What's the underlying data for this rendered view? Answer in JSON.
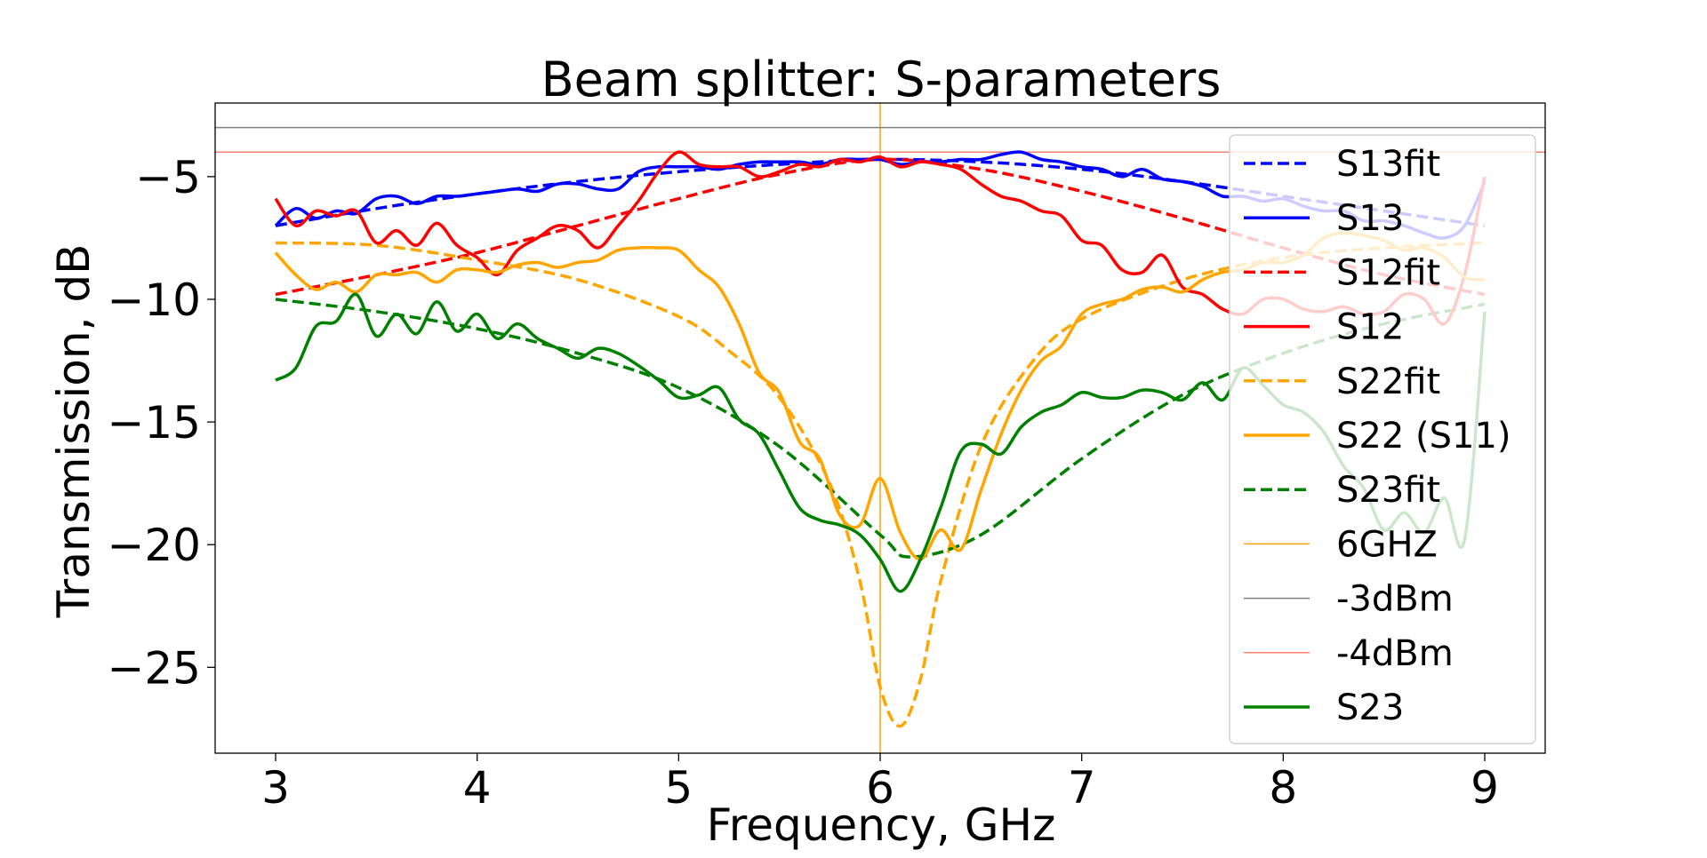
{
  "chart_data": {
    "type": "line",
    "title": "Beam splitter:  S-parameters",
    "xlabel": "Frequency, GHz",
    "ylabel": "Transmission, dB",
    "xlim": [
      2.7,
      9.3
    ],
    "ylim": [
      -28.5,
      -2
    ],
    "xticks": [
      3,
      4,
      5,
      6,
      7,
      8,
      9
    ],
    "xtick_labels": [
      "3",
      "4",
      "5",
      "6",
      "7",
      "8",
      "9"
    ],
    "yticks": [
      -5,
      -10,
      -15,
      -20,
      -25
    ],
    "ytick_labels": [
      "−5",
      "−10",
      "−15",
      "−20",
      "−25"
    ],
    "grid": false,
    "legend_position": "right",
    "series": [
      {
        "name": "S13fit",
        "color": "#0000ff",
        "style": "dashed",
        "x": [
          3,
          3.5,
          4,
          4.5,
          5,
          5.5,
          6,
          6.5,
          7,
          7.5,
          8,
          8.5,
          9
        ],
        "y": [
          -7.0,
          -6.3,
          -5.7,
          -5.2,
          -4.8,
          -4.5,
          -4.3,
          -4.4,
          -4.7,
          -5.2,
          -5.8,
          -6.4,
          -7.0
        ]
      },
      {
        "name": "S13",
        "color": "#0000ff",
        "style": "solid",
        "x": [
          3,
          3.1,
          3.2,
          3.3,
          3.4,
          3.5,
          3.6,
          3.7,
          3.8,
          3.9,
          4,
          4.1,
          4.2,
          4.3,
          4.4,
          4.5,
          4.6,
          4.7,
          4.8,
          4.9,
          5,
          5.1,
          5.2,
          5.3,
          5.4,
          5.5,
          5.6,
          5.7,
          5.8,
          5.9,
          6,
          6.1,
          6.2,
          6.3,
          6.4,
          6.5,
          6.6,
          6.7,
          6.8,
          6.9,
          7,
          7.1,
          7.2,
          7.3,
          7.4,
          7.5,
          7.6,
          7.7,
          7.8,
          7.9,
          8,
          8.1,
          8.2,
          8.3,
          8.4,
          8.5,
          8.6,
          8.7,
          8.8,
          8.9,
          9
        ],
        "y": [
          -7.0,
          -6.3,
          -6.7,
          -6.4,
          -6.5,
          -5.9,
          -5.8,
          -6.1,
          -5.8,
          -5.8,
          -5.7,
          -5.6,
          -5.5,
          -5.6,
          -5.3,
          -5.3,
          -5.5,
          -5.5,
          -4.8,
          -4.6,
          -4.6,
          -4.6,
          -4.7,
          -4.5,
          -4.4,
          -4.4,
          -4.4,
          -4.5,
          -4.3,
          -4.3,
          -4.3,
          -4.5,
          -4.4,
          -4.4,
          -4.3,
          -4.3,
          -4.1,
          -4.0,
          -4.3,
          -4.4,
          -4.6,
          -4.7,
          -5.0,
          -4.7,
          -5.1,
          -5.2,
          -5.4,
          -5.8,
          -5.8,
          -6.0,
          -5.9,
          -6.2,
          -6.4,
          -6.4,
          -6.8,
          -6.8,
          -7.0,
          -7.3,
          -7.5,
          -7.0,
          -5.2
        ]
      },
      {
        "name": "S12fit",
        "color": "#ff0000",
        "style": "dashed",
        "x": [
          3,
          3.5,
          4,
          4.5,
          5,
          5.5,
          6,
          6.5,
          7,
          7.5,
          8,
          8.5,
          9
        ],
        "y": [
          -9.8,
          -9.0,
          -8.1,
          -7.0,
          -5.9,
          -4.9,
          -4.3,
          -4.7,
          -5.6,
          -6.7,
          -7.9,
          -9.0,
          -9.8
        ]
      },
      {
        "name": "S12",
        "color": "#ff0000",
        "style": "solid",
        "x": [
          3,
          3.1,
          3.2,
          3.3,
          3.4,
          3.5,
          3.6,
          3.7,
          3.8,
          3.9,
          4,
          4.1,
          4.2,
          4.3,
          4.4,
          4.5,
          4.6,
          4.7,
          4.8,
          4.9,
          5,
          5.1,
          5.2,
          5.3,
          5.4,
          5.5,
          5.6,
          5.7,
          5.8,
          5.9,
          6,
          6.1,
          6.2,
          6.3,
          6.4,
          6.5,
          6.6,
          6.7,
          6.8,
          6.9,
          7,
          7.1,
          7.2,
          7.3,
          7.4,
          7.5,
          7.6,
          7.7,
          7.8,
          7.9,
          8,
          8.1,
          8.2,
          8.3,
          8.4,
          8.5,
          8.6,
          8.7,
          8.8,
          8.9,
          9
        ],
        "y": [
          -5.9,
          -7.0,
          -6.4,
          -6.6,
          -6.4,
          -7.7,
          -7.2,
          -7.8,
          -6.9,
          -7.8,
          -8.3,
          -9.0,
          -8.0,
          -7.5,
          -7.0,
          -7.2,
          -7.9,
          -7.0,
          -6.0,
          -4.8,
          -4.0,
          -4.5,
          -4.6,
          -4.6,
          -5.0,
          -4.8,
          -4.5,
          -4.6,
          -4.3,
          -4.4,
          -4.2,
          -4.6,
          -4.4,
          -4.5,
          -4.7,
          -5.3,
          -5.8,
          -6.0,
          -6.4,
          -6.6,
          -7.6,
          -7.8,
          -8.8,
          -8.9,
          -8.2,
          -9.5,
          -9.8,
          -10.4,
          -10.6,
          -10.0,
          -10.0,
          -10.4,
          -10.5,
          -10.3,
          -10.6,
          -10.5,
          -9.8,
          -10.0,
          -11.0,
          -9.0,
          -5.0
        ]
      },
      {
        "name": "S22fit",
        "color": "#ffa500",
        "style": "dashed",
        "x": [
          3,
          3.5,
          4,
          4.5,
          5,
          5.25,
          5.5,
          5.75,
          5.9,
          6.0,
          6.1,
          6.2,
          6.3,
          6.5,
          6.75,
          7,
          7.5,
          8,
          8.5,
          9
        ],
        "y": [
          -7.7,
          -7.8,
          -8.4,
          -9.2,
          -10.7,
          -12.1,
          -14.0,
          -17.5,
          -21.5,
          -25.8,
          -27.4,
          -25.5,
          -21.5,
          -16.0,
          -12.6,
          -10.8,
          -9.2,
          -8.3,
          -7.9,
          -7.7
        ]
      },
      {
        "name": "S22 (S11)",
        "color": "#ffa500",
        "style": "solid",
        "x": [
          3,
          3.1,
          3.2,
          3.3,
          3.4,
          3.5,
          3.6,
          3.7,
          3.8,
          3.9,
          4,
          4.1,
          4.2,
          4.3,
          4.4,
          4.5,
          4.6,
          4.7,
          4.8,
          4.9,
          5,
          5.1,
          5.2,
          5.3,
          5.4,
          5.5,
          5.6,
          5.7,
          5.8,
          5.9,
          6,
          6.1,
          6.2,
          6.3,
          6.4,
          6.5,
          6.6,
          6.7,
          6.8,
          6.9,
          7,
          7.1,
          7.2,
          7.3,
          7.4,
          7.5,
          7.6,
          7.7,
          7.8,
          7.9,
          8,
          8.1,
          8.2,
          8.3,
          8.4,
          8.5,
          8.6,
          8.7,
          8.8,
          8.9,
          9
        ],
        "y": [
          -8.1,
          -9.0,
          -9.6,
          -9.3,
          -9.7,
          -9.0,
          -9.0,
          -8.9,
          -9.3,
          -8.8,
          -8.8,
          -8.9,
          -8.6,
          -8.5,
          -8.7,
          -8.5,
          -8.4,
          -8.0,
          -7.9,
          -7.9,
          -8.0,
          -8.8,
          -9.5,
          -11.0,
          -13.0,
          -13.8,
          -15.8,
          -16.5,
          -18.8,
          -19.2,
          -17.3,
          -19.5,
          -20.6,
          -19.4,
          -20.2,
          -17.8,
          -15.5,
          -13.7,
          -12.5,
          -11.9,
          -10.6,
          -10.2,
          -10.0,
          -9.6,
          -9.5,
          -9.7,
          -9.2,
          -8.9,
          -8.8,
          -8.5,
          -8.5,
          -8.2,
          -7.5,
          -7.3,
          -7.4,
          -7.6,
          -8.0,
          -7.9,
          -8.3,
          -9.1,
          -9.2
        ]
      },
      {
        "name": "S23fit",
        "color": "#008000",
        "style": "dashed",
        "x": [
          3,
          3.5,
          4,
          4.5,
          5,
          5.5,
          6,
          6.15,
          6.5,
          7,
          7.5,
          8,
          8.5,
          9
        ],
        "y": [
          -10.0,
          -10.5,
          -11.2,
          -12.2,
          -13.6,
          -16.0,
          -19.6,
          -20.5,
          -19.6,
          -16.5,
          -13.9,
          -12.2,
          -11.0,
          -10.2
        ]
      },
      {
        "name": "S23",
        "color": "#008000",
        "style": "solid",
        "x": [
          3,
          3.1,
          3.2,
          3.3,
          3.4,
          3.5,
          3.6,
          3.7,
          3.8,
          3.9,
          4,
          4.1,
          4.2,
          4.3,
          4.4,
          4.5,
          4.6,
          4.7,
          4.8,
          4.9,
          5,
          5.1,
          5.2,
          5.3,
          5.4,
          5.5,
          5.6,
          5.7,
          5.8,
          5.9,
          6,
          6.1,
          6.2,
          6.3,
          6.4,
          6.5,
          6.6,
          6.7,
          6.8,
          6.9,
          7,
          7.1,
          7.2,
          7.3,
          7.4,
          7.5,
          7.6,
          7.7,
          7.8,
          7.9,
          8,
          8.1,
          8.2,
          8.3,
          8.4,
          8.5,
          8.6,
          8.7,
          8.8,
          8.9,
          9
        ],
        "y": [
          -13.3,
          -12.8,
          -11.1,
          -10.9,
          -9.8,
          -11.5,
          -10.6,
          -11.4,
          -10.1,
          -11.3,
          -10.6,
          -11.6,
          -11.0,
          -11.6,
          -12.0,
          -12.4,
          -12.0,
          -12.2,
          -12.7,
          -13.3,
          -14.0,
          -13.9,
          -13.6,
          -14.9,
          -15.5,
          -17.0,
          -18.5,
          -19.0,
          -19.2,
          -19.6,
          -20.6,
          -21.9,
          -20.6,
          -18.5,
          -16.2,
          -15.9,
          -16.3,
          -15.2,
          -14.6,
          -14.3,
          -13.8,
          -14.0,
          -14.0,
          -13.7,
          -13.8,
          -14.1,
          -13.4,
          -14.1,
          -12.8,
          -13.5,
          -14.3,
          -14.6,
          -15.4,
          -16.8,
          -17.7,
          -19.4,
          -18.7,
          -19.5,
          -18.1,
          -19.8,
          -10.5
        ]
      },
      {
        "name": "6GHZ",
        "color": "#ffa500",
        "style": "thin-vertical",
        "x": 6
      },
      {
        "name": "-3dBm",
        "color": "#808080",
        "style": "thin-horizontal",
        "y": -3
      },
      {
        "name": "-4dBm",
        "color": "#fa8072",
        "style": "thin-horizontal",
        "y": -4
      }
    ],
    "legend_order": [
      "S13fit",
      "S13",
      "S12fit",
      "S12",
      "S22fit",
      "S22 (S11)",
      "S23fit",
      "6GHZ",
      "-3dBm",
      "-4dBm",
      "S23"
    ]
  }
}
